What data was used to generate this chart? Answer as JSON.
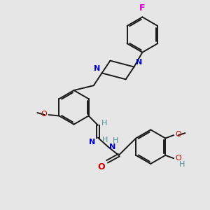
{
  "bg_color": "#e6e6e6",
  "bond_color": "#1a1a1a",
  "N_color": "#0000cc",
  "O_color": "#cc0000",
  "F_color": "#cc00cc",
  "H_color": "#4a9090",
  "lw": 1.4,
  "figsize": [
    3.0,
    3.0
  ],
  "dpi": 100,
  "xlim": [
    0,
    10
  ],
  "ylim": [
    0,
    10
  ]
}
